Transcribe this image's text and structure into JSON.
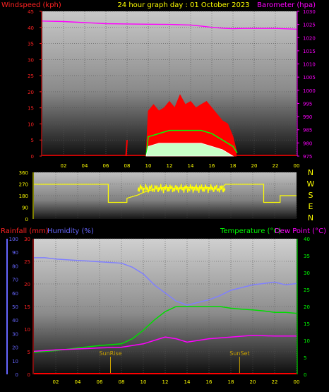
{
  "header": {
    "title": "24 hour graph day : 01 October 2023",
    "left_label": "Windspeed (kph)",
    "right_label": "Barometer (hpa)"
  },
  "colors": {
    "wind": "#ff0000",
    "gust_fill": "#ff0000",
    "wind_avg": "#00ff00",
    "wind_light": "#c8ffc8",
    "barometer": "#ff00ff",
    "direction": "#ffff00",
    "rain": "#ff0000",
    "humidity": "#8080ff",
    "temperature": "#00dd00",
    "dewpoint": "#ff00ff",
    "sun_marker": "#c8a000",
    "label_blue": "#6666ff",
    "label_red": "#ff2222",
    "label_green": "#00ff00",
    "label_yellow": "#ffff00",
    "label_magenta": "#ff00ff"
  },
  "chart_data": [
    {
      "type": "line",
      "name_key": "wind_baro",
      "left_axis": {
        "label": "Windspeed (kph)",
        "range": [
          0,
          45
        ],
        "ticks": [
          "0",
          "5",
          "10",
          "15",
          "20",
          "25",
          "30",
          "35",
          "40",
          "45"
        ]
      },
      "right_axis": {
        "label": "Barometer (hpa)",
        "range": [
          975,
          1030
        ],
        "ticks": [
          "975",
          "980",
          "985",
          "990",
          "995",
          "1000",
          "1005",
          "1010",
          "1015",
          "1020",
          "1025",
          "1030"
        ]
      },
      "x_ticks": [
        "02",
        "04",
        "06",
        "08",
        "10",
        "12",
        "14",
        "16",
        "18",
        "20",
        "22",
        "00"
      ],
      "x_range_hours": [
        0,
        24
      ],
      "series": [
        {
          "name": "Barometer",
          "hours": [
            0,
            2,
            4,
            6,
            8,
            10,
            12,
            14,
            15,
            16,
            17,
            18,
            19,
            20,
            22,
            24
          ],
          "values": [
            1026.3,
            1026.1,
            1025.7,
            1025.3,
            1025.2,
            1025.1,
            1025.0,
            1024.8,
            1024.4,
            1023.9,
            1023.6,
            1023.4,
            1023.5,
            1023.5,
            1023.5,
            1023.2
          ]
        },
        {
          "name": "Wind gust",
          "hours": [
            7.9,
            8.0,
            9.8,
            10.0,
            10.5,
            11.0,
            11.5,
            12.0,
            12.5,
            13.0,
            13.5,
            14.0,
            14.5,
            15.0,
            15.5,
            16.0,
            16.5,
            17.0,
            17.5,
            18.0,
            18.3
          ],
          "values": [
            0,
            5,
            0,
            14,
            16,
            14,
            15,
            17,
            15,
            19,
            16,
            17,
            15,
            16,
            17,
            15,
            13,
            11,
            10,
            6,
            2
          ]
        },
        {
          "name": "Wind average",
          "hours": [
            9.8,
            10.0,
            11.0,
            12.0,
            13.0,
            14.0,
            15.0,
            16.0,
            17.0,
            18.0,
            18.4
          ],
          "values": [
            0,
            6,
            7,
            8,
            8,
            8,
            8,
            7,
            5,
            3,
            1
          ]
        },
        {
          "name": "Wind speed",
          "hours": [
            9.8,
            10.0,
            11.0,
            12.0,
            13.0,
            14.0,
            15.0,
            16.0,
            17.0,
            18.0
          ],
          "values": [
            0,
            3,
            4,
            4,
            4,
            4,
            4,
            3,
            2,
            0
          ]
        }
      ]
    },
    {
      "type": "line",
      "name_key": "wind_direction",
      "left_axis": {
        "range": [
          0,
          360
        ],
        "ticks": [
          "0",
          "90",
          "180",
          "270",
          "360"
        ]
      },
      "right_axis": {
        "ticks": [
          "N",
          "W",
          "S",
          "E",
          "N"
        ]
      },
      "series": [
        {
          "name": "Wind direction",
          "hours": [
            0,
            6.8,
            6.8,
            8.5,
            8.5,
            9.5,
            10.0,
            11.0,
            12.0,
            13.0,
            14.0,
            15.0,
            16.0,
            17.0,
            17.5,
            20.0,
            21.0,
            21.0,
            22.5,
            22.5,
            24.0
          ],
          "values": [
            268,
            268,
            128,
            128,
            160,
            185,
            205,
            230,
            245,
            235,
            245,
            240,
            242,
            225,
            268,
            268,
            268,
            128,
            128,
            180,
            180
          ]
        }
      ]
    },
    {
      "type": "line",
      "name_key": "temp_hum_rain",
      "labels": {
        "rain": "Rainfall (mm)",
        "humidity": "Humidity (%)",
        "temperature": "Temperature (°C)",
        "dewpoint": "Dew Point (°C)"
      },
      "humidity_axis": {
        "range": [
          0,
          100
        ],
        "ticks": [
          "0",
          "10",
          "20",
          "30",
          "40",
          "50",
          "60",
          "70",
          "80",
          "90",
          "100"
        ]
      },
      "rain_axis": {
        "range": [
          0,
          30
        ],
        "ticks": [
          "0",
          "5",
          "10",
          "15",
          "20",
          "25",
          "30"
        ]
      },
      "temp_axis": {
        "range": [
          0,
          40
        ],
        "ticks": [
          "0",
          "5",
          "10",
          "15",
          "20",
          "25",
          "30",
          "35",
          "40"
        ]
      },
      "x_ticks": [
        "02",
        "04",
        "06",
        "08",
        "10",
        "12",
        "14",
        "16",
        "18",
        "20",
        "22",
        "00"
      ],
      "annotations": [
        {
          "label": "SunRise",
          "hour": 7.0
        },
        {
          "label": "SunSet",
          "hour": 18.8
        }
      ],
      "series": [
        {
          "name": "Humidity",
          "hours": [
            0,
            1,
            2,
            4,
            6,
            8,
            9,
            10,
            11,
            12,
            13,
            14,
            15,
            16,
            17,
            18,
            19,
            20,
            21,
            22,
            23,
            24
          ],
          "values": [
            86,
            86,
            85,
            84,
            83,
            82,
            79,
            74,
            66,
            60,
            54,
            51,
            53,
            55,
            58,
            62,
            64,
            66,
            67,
            68,
            66,
            67
          ]
        },
        {
          "name": "Temperature",
          "hours": [
            0,
            2,
            4,
            6,
            8,
            9,
            10,
            11,
            12,
            13,
            14,
            15,
            16,
            17,
            18,
            19,
            20,
            21,
            22,
            23,
            24
          ],
          "values": [
            6.5,
            7.0,
            7.8,
            8.5,
            9.0,
            10.5,
            13.0,
            16.0,
            18.5,
            20.0,
            20.0,
            20.0,
            20.0,
            20.0,
            19.5,
            19.2,
            19.0,
            18.7,
            18.3,
            18.3,
            18.0
          ]
        },
        {
          "name": "Dew Point",
          "hours": [
            0,
            2,
            4,
            6,
            8,
            10,
            11,
            12,
            13,
            14,
            15,
            16,
            18,
            20,
            22,
            24
          ],
          "values": [
            6.8,
            7.2,
            7.5,
            7.8,
            8.0,
            9.0,
            10.0,
            11.0,
            10.5,
            9.5,
            10.0,
            10.5,
            11.0,
            11.5,
            11.3,
            11.3
          ]
        },
        {
          "name": "Rainfall",
          "hours": [
            0,
            24
          ],
          "values": [
            0,
            0
          ]
        }
      ]
    }
  ]
}
